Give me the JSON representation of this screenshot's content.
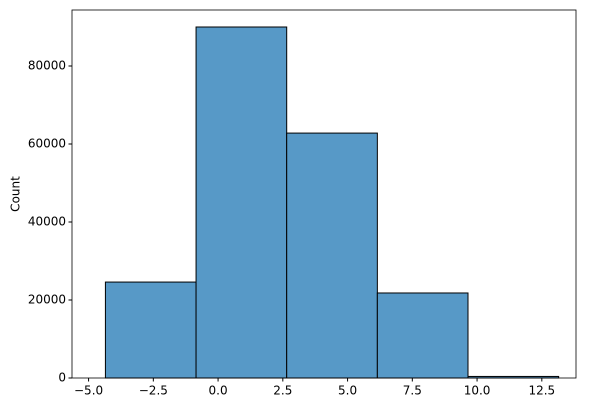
{
  "chart_data": {
    "type": "histogram",
    "ylabel": "Count",
    "bins": [
      -4.35,
      -0.85,
      2.65,
      6.15,
      9.65,
      13.15
    ],
    "values": [
      24600,
      90000,
      62800,
      21800,
      400
    ],
    "color": "#5799c7",
    "xlim": [
      -5.64,
      13.82
    ],
    "xticks": [
      {
        "value": -5,
        "label": "−5.0"
      },
      {
        "value": -2.5,
        "label": "−2.5"
      },
      {
        "value": 0,
        "label": "0.0"
      },
      2.5,
      {
        "value": 5,
        "label": "5.0"
      },
      7.5,
      {
        "value": 10,
        "label": "10.0"
      },
      12.5
    ],
    "ylim": [
      0,
      94360
    ],
    "yticks": [
      0,
      20000,
      40000,
      60000,
      80000
    ]
  }
}
